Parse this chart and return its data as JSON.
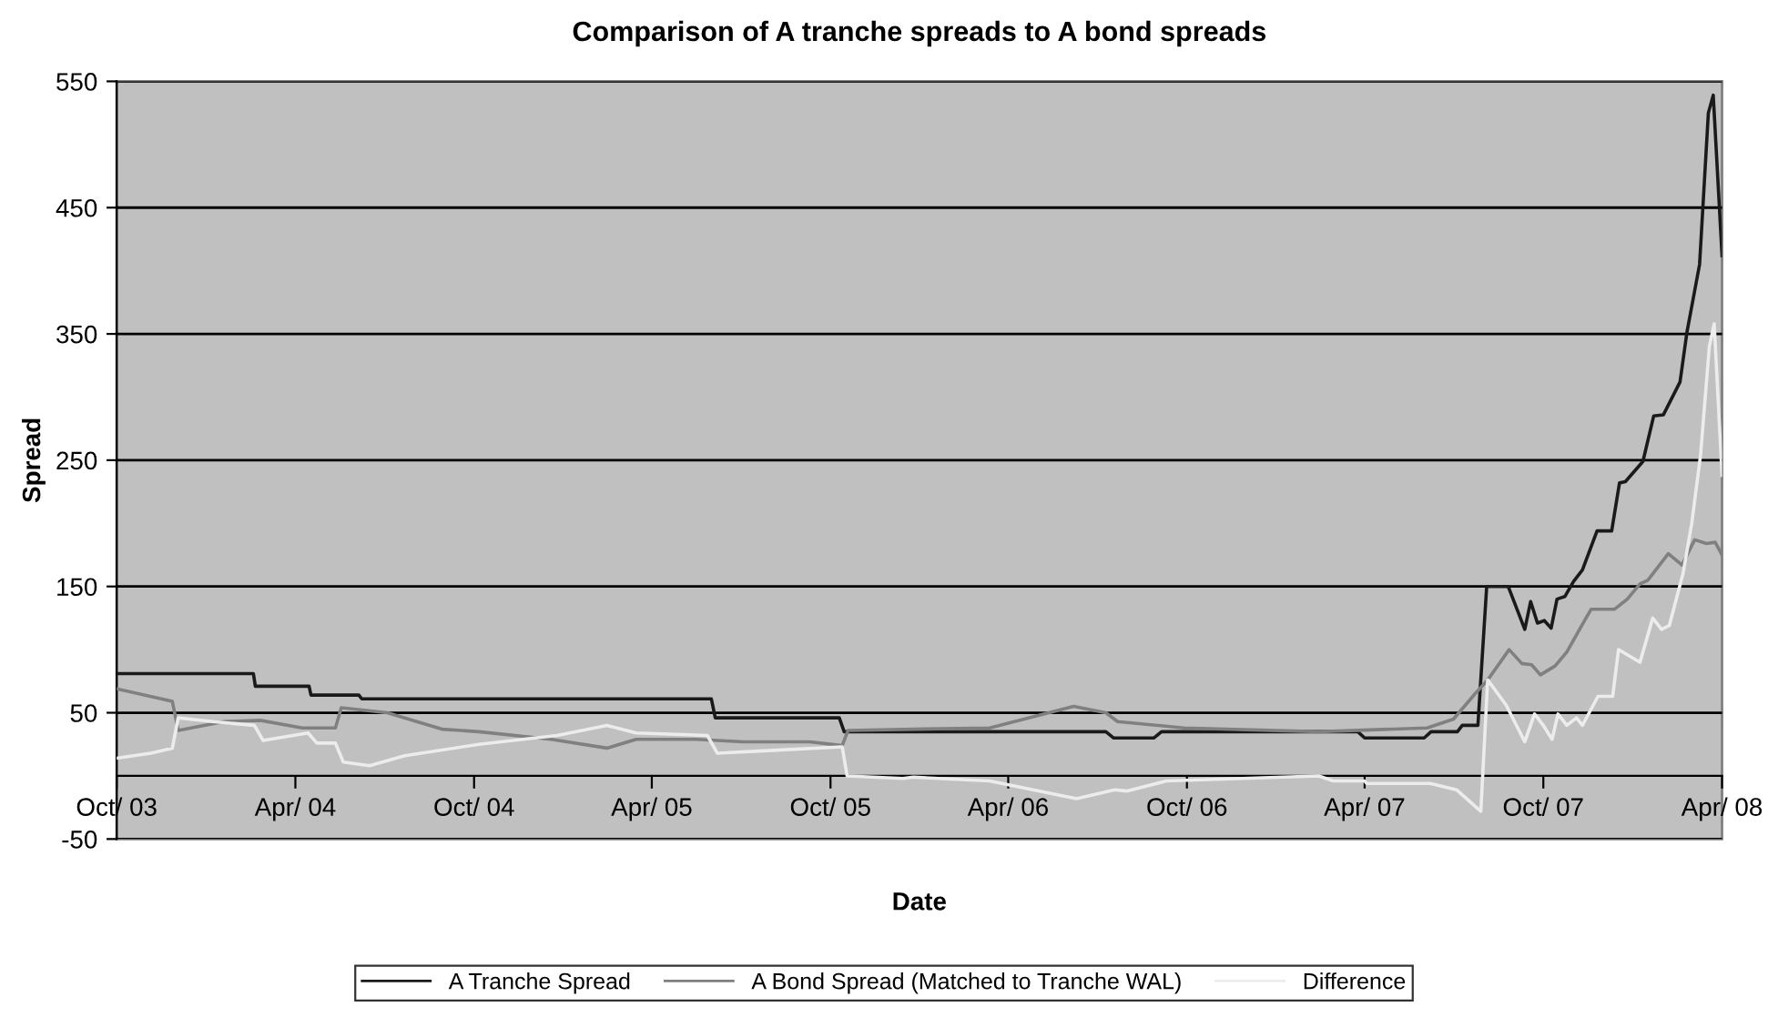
{
  "chart_data": {
    "type": "line",
    "title": "Comparison of A tranche spreads to A bond spreads",
    "xlabel": "Date",
    "ylabel": "Spread",
    "xlim": [
      "2003-10-01",
      "2008-04-01"
    ],
    "xticks": [
      {
        "value": "2003-10-01",
        "label": "Oct/ 03"
      },
      {
        "value": "2004-04-01",
        "label": "Apr/ 04"
      },
      {
        "value": "2004-10-01",
        "label": "Oct/ 04"
      },
      {
        "value": "2005-04-01",
        "label": "Apr/ 05"
      },
      {
        "value": "2005-10-01",
        "label": "Oct/ 05"
      },
      {
        "value": "2006-04-01",
        "label": "Apr/ 06"
      },
      {
        "value": "2006-10-01",
        "label": "Oct/ 06"
      },
      {
        "value": "2007-04-01",
        "label": "Apr/ 07"
      },
      {
        "value": "2007-10-01",
        "label": "Oct/ 07"
      },
      {
        "value": "2008-04-01",
        "label": "Apr/ 08"
      }
    ],
    "ylim": [
      -50,
      550
    ],
    "yticks": [
      -50,
      50,
      150,
      250,
      350,
      450,
      550
    ],
    "grid": "y",
    "legend": "bottom",
    "marker": "none",
    "line_style": "solid",
    "series": [
      {
        "name": "A Tranche Spread",
        "color": "#1a1a1a",
        "x": [
          "2003-10-01",
          "2004-02-18",
          "2004-02-20",
          "2004-04-15",
          "2004-04-17",
          "2004-06-05",
          "2004-06-08",
          "2005-06-01",
          "2005-06-05",
          "2005-10-10",
          "2005-10-15",
          "2006-07-10",
          "2006-07-18",
          "2006-08-28",
          "2006-09-05",
          "2007-03-25",
          "2007-04-01",
          "2007-06-01",
          "2007-06-08",
          "2007-07-05",
          "2007-07-10",
          "2007-07-26",
          "2007-08-04",
          "2007-08-26",
          "2007-09-12",
          "2007-09-18",
          "2007-09-25",
          "2007-10-02",
          "2007-10-09",
          "2007-10-15",
          "2007-10-23",
          "2007-11-01",
          "2007-11-10",
          "2007-11-25",
          "2007-12-10",
          "2007-12-18",
          "2007-12-24",
          "2008-01-11",
          "2008-01-22",
          "2008-02-01",
          "2008-02-18",
          "2008-02-25",
          "2008-03-09",
          "2008-03-18",
          "2008-03-23",
          "2008-04-01"
        ],
        "values": [
          81,
          81,
          71,
          71,
          64,
          64,
          61,
          61,
          46,
          46,
          35,
          35,
          30,
          30,
          35,
          35,
          30,
          30,
          35,
          35,
          40,
          40,
          150,
          150,
          116,
          138,
          121,
          123,
          117,
          140,
          142,
          154,
          163,
          194,
          194,
          232,
          233,
          249,
          285,
          286,
          312,
          351,
          405,
          525,
          539,
          412
        ]
      },
      {
        "name": "A Bond Spread (Matched to Tranche WAL)",
        "color": "#808080",
        "x": [
          "2003-10-01",
          "2003-11-27",
          "2003-12-03",
          "2004-01-19",
          "2004-02-25",
          "2004-04-08",
          "2004-05-12",
          "2004-05-18",
          "2004-07-04",
          "2004-08-29",
          "2004-10-06",
          "2004-12-19",
          "2005-02-14",
          "2005-03-16",
          "2005-05-16",
          "2005-07-04",
          "2005-09-10",
          "2005-10-13",
          "2005-10-19",
          "2005-12-25",
          "2006-03-13",
          "2006-06-07",
          "2006-07-10",
          "2006-07-22",
          "2006-09-28",
          "2007-02-13",
          "2007-06-04",
          "2007-07-01",
          "2007-07-23",
          "2007-08-05",
          "2007-08-27",
          "2007-09-09",
          "2007-09-19",
          "2007-09-28",
          "2007-10-13",
          "2007-10-25",
          "2007-11-10",
          "2007-11-19",
          "2007-12-13",
          "2007-12-26",
          "2008-01-08",
          "2008-01-16",
          "2008-02-06",
          "2008-02-20",
          "2008-03-04",
          "2008-03-16",
          "2008-03-25",
          "2008-04-01"
        ],
        "values": [
          69,
          59,
          36,
          43,
          44,
          38,
          38,
          54,
          50,
          37,
          35,
          29,
          22,
          29,
          29,
          27,
          27,
          24,
          36,
          37,
          38,
          55,
          50,
          43,
          38,
          35,
          38,
          45,
          65,
          76,
          100,
          89,
          88,
          80,
          87,
          98,
          120,
          132,
          132,
          140,
          152,
          155,
          176,
          167,
          187,
          184,
          185,
          175
        ]
      },
      {
        "name": "Difference",
        "color": "#ececec",
        "x": [
          "2003-10-01",
          "2003-11-05",
          "2003-11-27",
          "2003-12-03",
          "2004-01-07",
          "2004-02-19",
          "2004-02-28",
          "2004-04-14",
          "2004-04-23",
          "2004-05-12",
          "2004-05-20",
          "2004-06-16",
          "2004-07-22",
          "2004-10-06",
          "2004-12-25",
          "2005-02-14",
          "2005-03-16",
          "2005-05-28",
          "2005-06-07",
          "2005-07-30",
          "2005-10-13",
          "2005-10-18",
          "2005-12-14",
          "2005-12-25",
          "2006-03-13",
          "2006-06-10",
          "2006-07-19",
          "2006-08-01",
          "2006-09-10",
          "2007-02-13",
          "2007-02-28",
          "2007-04-01",
          "2007-04-03",
          "2007-06-07",
          "2007-07-04",
          "2007-07-29",
          "2007-08-05",
          "2007-08-24",
          "2007-09-12",
          "2007-09-22",
          "2007-10-01",
          "2007-10-10",
          "2007-10-16",
          "2007-10-25",
          "2007-11-04",
          "2007-11-10",
          "2007-11-26",
          "2007-12-11",
          "2007-12-17",
          "2008-01-08",
          "2008-01-21",
          "2008-01-30",
          "2008-02-07",
          "2008-02-21",
          "2008-03-01",
          "2008-03-10",
          "2008-03-19",
          "2008-03-24",
          "2008-04-01"
        ],
        "values": [
          14,
          18,
          22,
          46,
          43,
          40,
          28,
          34,
          26,
          26,
          11,
          8,
          16,
          25,
          32,
          40,
          34,
          32,
          18,
          20,
          23,
          0,
          -2,
          -1,
          -4,
          -18,
          -11,
          -12,
          -4,
          0,
          -4,
          -4,
          -6,
          -6,
          -11,
          -28,
          76,
          56,
          27,
          49,
          40,
          29,
          49,
          40,
          46,
          40,
          63,
          63,
          100,
          90,
          125,
          116,
          119,
          160,
          200,
          254,
          340,
          358,
          238
        ]
      }
    ]
  }
}
